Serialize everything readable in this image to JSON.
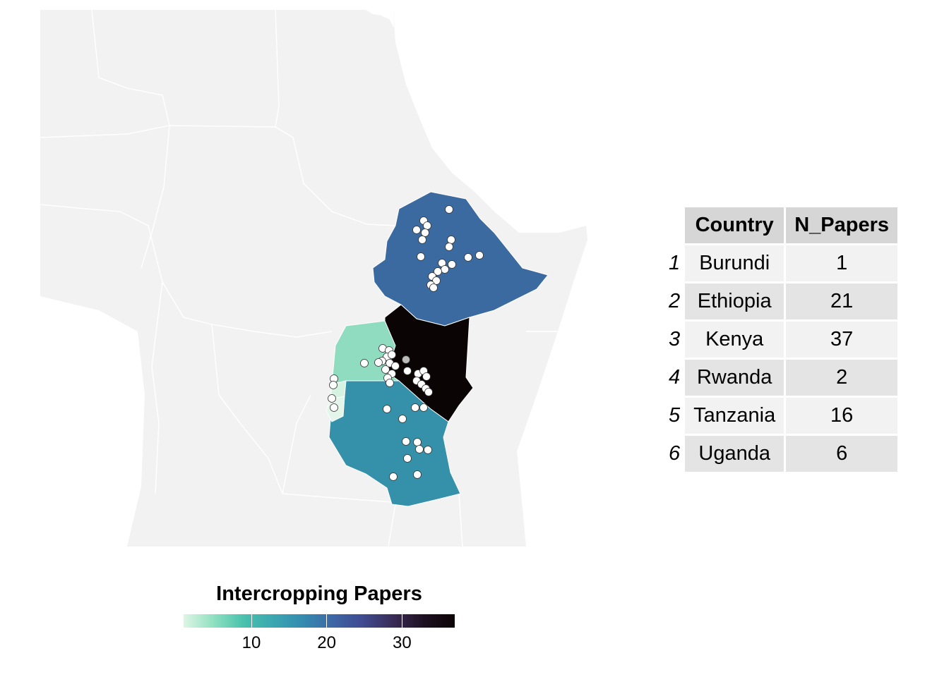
{
  "legend": {
    "title": "Intercropping Papers",
    "ticks": [
      {
        "value": 10,
        "label": "10"
      },
      {
        "value": 20,
        "label": "20"
      },
      {
        "value": 30,
        "label": "30"
      }
    ],
    "min": 1,
    "max": 37,
    "colors": [
      "#def5e5",
      "#8ee0c0",
      "#49c1ad",
      "#3aa6b0",
      "#348ab0",
      "#3e65a4",
      "#40498e",
      "#382a54",
      "#1b1020",
      "#0b0405"
    ]
  },
  "table": {
    "headers": [
      "",
      "Country",
      "N_Papers"
    ],
    "rows": [
      {
        "idx": "1",
        "country": "Burundi",
        "n": "1"
      },
      {
        "idx": "2",
        "country": "Ethiopia",
        "n": "21"
      },
      {
        "idx": "3",
        "country": "Kenya",
        "n": "37"
      },
      {
        "idx": "4",
        "country": "Rwanda",
        "n": "2"
      },
      {
        "idx": "5",
        "country": "Tanzania",
        "n": "16"
      },
      {
        "idx": "6",
        "country": "Uganda",
        "n": "6"
      }
    ]
  },
  "map": {
    "background_color": "#f2f2f2",
    "border_color": "#ffffff",
    "point_fill": "#ffffff",
    "point_stroke": "#333333",
    "country_fills": {
      "ethiopia": "#3b6aa0",
      "kenya": "#0b0405",
      "uganda": "#8fdcc0",
      "tanzania": "#3590aa",
      "rwanda": "#d6f2e0",
      "burundi": "#e4f6ea"
    }
  }
}
